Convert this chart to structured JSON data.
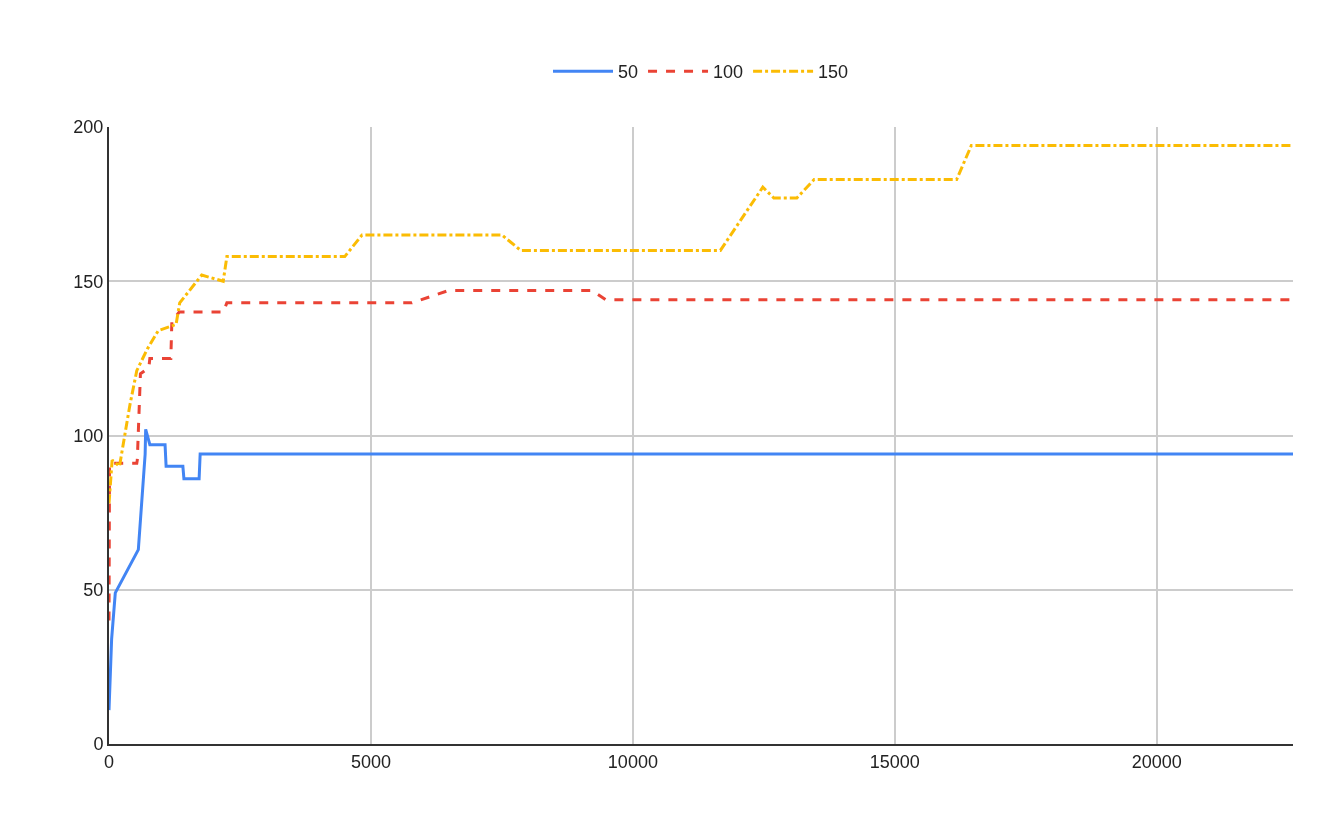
{
  "chart_data": {
    "type": "line",
    "xlim": [
      0,
      22600
    ],
    "xticks": [
      0,
      5000,
      10000,
      15000,
      20000
    ],
    "ylim": [
      0,
      200
    ],
    "yticks": [
      0,
      50,
      100,
      150,
      200
    ],
    "grid": true,
    "legend": "top",
    "marker": "none",
    "series": [
      {
        "name": "50",
        "color": "#4285f4",
        "line_style": "solid",
        "x": [
          0,
          50,
          120,
          560,
          690,
          700,
          780,
          1070,
          1090,
          1410,
          1430,
          1720,
          1740,
          22600
        ],
        "values": [
          11,
          34,
          49,
          63,
          94,
          102,
          97,
          97,
          90,
          90,
          86,
          86,
          94,
          94
        ]
      },
      {
        "name": "100",
        "color": "#ea4335",
        "line_style": "dashed",
        "x": [
          0,
          10,
          530,
          540,
          600,
          760,
          780,
          1180,
          1200,
          1340,
          2180,
          2250,
          5780,
          6480,
          9220,
          9480,
          22600
        ],
        "values": [
          40,
          91,
          91,
          92,
          120,
          122,
          125,
          125,
          137,
          140,
          140,
          143,
          143,
          147,
          147,
          144,
          144
        ]
      },
      {
        "name": "150",
        "color": "#fbbc04",
        "line_style": "dashdot",
        "x": [
          0,
          60,
          200,
          320,
          400,
          530,
          730,
          940,
          1280,
          1350,
          1770,
          2180,
          2250,
          4500,
          4830,
          7500,
          7860,
          11670,
          12480,
          12690,
          13130,
          13460,
          16180,
          16460,
          22600
        ],
        "values": [
          78,
          92,
          90,
          102,
          110,
          121,
          128,
          134,
          136,
          143,
          152,
          150,
          158,
          158,
          165,
          165,
          160,
          160,
          180.5,
          177,
          177,
          183,
          183,
          194,
          194
        ]
      }
    ]
  }
}
